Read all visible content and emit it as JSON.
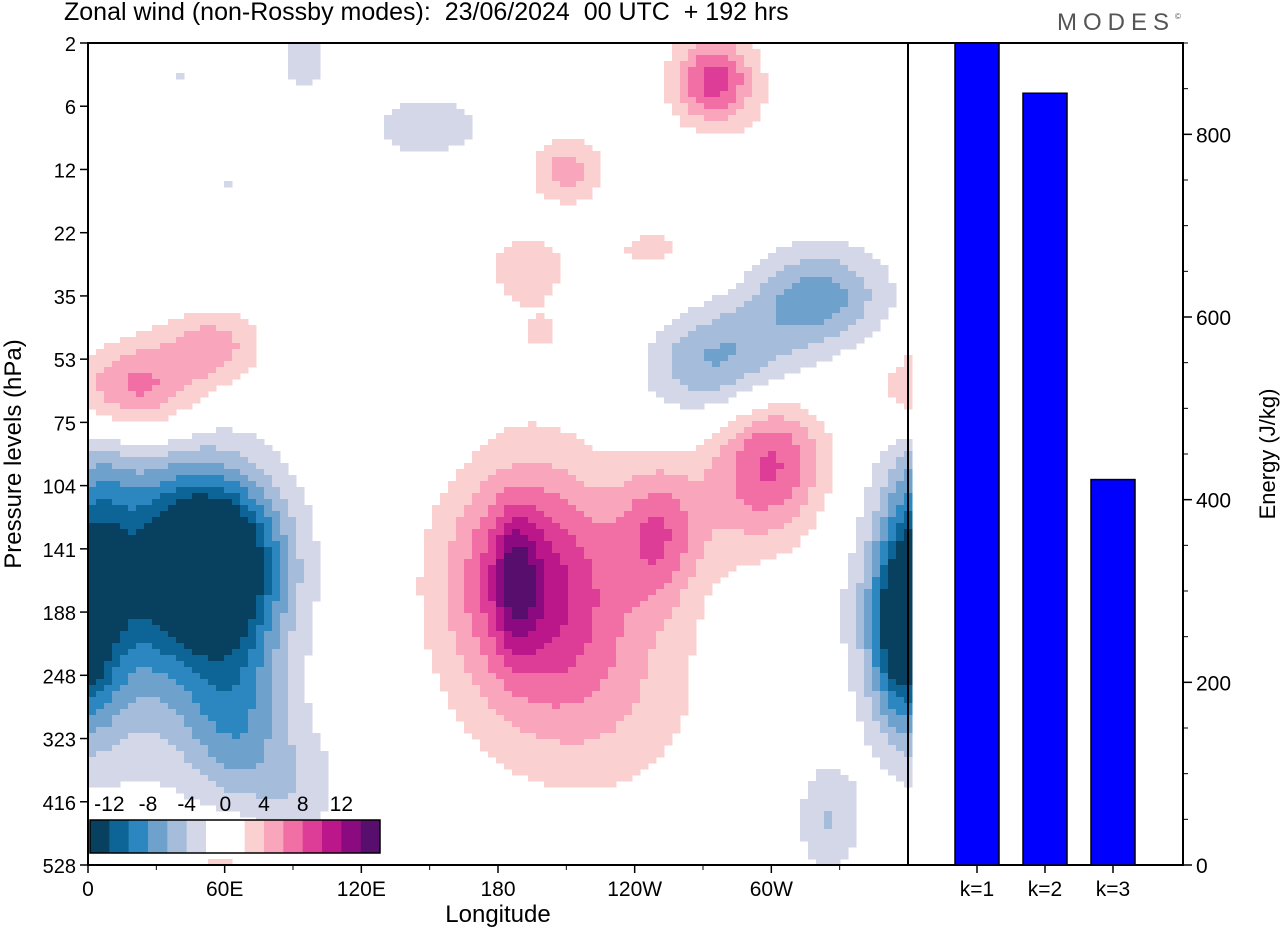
{
  "title": "Zonal wind (non-Rossby modes):  23/06/2024  00 UTC  + 192 hrs",
  "logo": "MODES",
  "logo_mark": "©",
  "colors": {
    "bar": "#0000ff",
    "scale": [
      "#08405f",
      "#0c6596",
      "#2c86bf",
      "#6ea1cc",
      "#a5bdda",
      "#d3d7e8",
      "#ffffff",
      "#ffffff",
      "#fbd0d0",
      "#f9a5bb",
      "#f16fa5",
      "#dd3d97",
      "#bc178a",
      "#8c0a7f",
      "#570e6c"
    ]
  },
  "chart_data": [
    {
      "type": "heatmap",
      "title": "Zonal wind (non-Rossby modes)",
      "xlabel": "Longitude",
      "ylabel": "Pressure levels (hPa)",
      "x_ticks": [
        "0",
        "60E",
        "120E",
        "180",
        "120W",
        "60W"
      ],
      "y_ticks": [
        "2",
        "6",
        "12",
        "22",
        "35",
        "53",
        "75",
        "104",
        "141",
        "188",
        "248",
        "323",
        "416",
        "528"
      ],
      "colorbar_labels": [
        "-12",
        "-8",
        "-4",
        "0",
        "4",
        "8",
        "12"
      ],
      "color_levels": [
        -14,
        -12,
        -10,
        -8,
        -6,
        -4,
        -2,
        0,
        2,
        4,
        6,
        8,
        10,
        12,
        14
      ],
      "blobs": [
        {
          "lon": 55,
          "lev": 8.2,
          "rx": 28,
          "ry": 1.2,
          "amp": -15
        },
        {
          "lon": 30,
          "lev": 8.6,
          "rx": 48,
          "ry": 2.4,
          "amp": -9
        },
        {
          "lon": 65,
          "lev": 10.6,
          "rx": 22,
          "ry": 1.6,
          "amp": -6
        },
        {
          "lon": 92,
          "lev": 11.8,
          "rx": 20,
          "ry": 1.0,
          "amp": -3
        },
        {
          "lon": 5,
          "lev": 8.5,
          "rx": 14,
          "ry": 2.2,
          "amp": -6
        },
        {
          "lon": 195,
          "lev": 8.4,
          "rx": 38,
          "ry": 1.8,
          "amp": 10
        },
        {
          "lon": 188,
          "lev": 8.5,
          "rx": 9,
          "ry": 1.0,
          "amp": 6
        },
        {
          "lon": 220,
          "lev": 10.2,
          "rx": 50,
          "ry": 1.8,
          "amp": 4
        },
        {
          "lon": 250,
          "lev": 7.8,
          "rx": 18,
          "ry": 1.1,
          "amp": 6
        },
        {
          "lon": 300,
          "lev": 6.5,
          "rx": 24,
          "ry": 1.0,
          "amp": 7
        },
        {
          "lon": 290,
          "lev": 7.4,
          "rx": 40,
          "ry": 1.1,
          "amp": 3
        },
        {
          "lon": 275,
          "lev": 5.0,
          "rx": 36,
          "ry": 0.9,
          "amp": -7
        },
        {
          "lon": 320,
          "lev": 4.0,
          "rx": 30,
          "ry": 0.8,
          "amp": -7
        },
        {
          "lon": 355,
          "lev": 9.3,
          "rx": 12,
          "ry": 1.4,
          "amp": -9
        },
        {
          "lon": 325,
          "lev": 12.3,
          "rx": 14,
          "ry": 0.9,
          "amp": -4
        },
        {
          "lon": 20,
          "lev": 5.5,
          "rx": 30,
          "ry": 0.8,
          "amp": 8
        },
        {
          "lon": 55,
          "lev": 4.8,
          "rx": 22,
          "ry": 0.6,
          "amp": 5
        },
        {
          "lon": 210,
          "lev": 4.6,
          "rx": 70,
          "ry": 1.0,
          "amp": 2
        },
        {
          "lon": 250,
          "lev": 3.2,
          "rx": 40,
          "ry": 0.7,
          "amp": 2
        },
        {
          "lon": 275,
          "lev": 0.6,
          "rx": 18,
          "ry": 0.7,
          "amp": 9
        },
        {
          "lon": 210,
          "lev": 2.0,
          "rx": 16,
          "ry": 0.5,
          "amp": 5
        },
        {
          "lon": 320,
          "lev": 1.5,
          "rx": 24,
          "ry": 0.6,
          "amp": 2
        },
        {
          "lon": 95,
          "lev": 0.2,
          "rx": 10,
          "ry": 0.5,
          "amp": -4
        },
        {
          "lon": 60,
          "lev": 2.2,
          "rx": 60,
          "ry": 0.7,
          "amp": -2
        },
        {
          "lon": 150,
          "lev": 1.3,
          "rx": 30,
          "ry": 0.6,
          "amp": -3
        },
        {
          "lon": 130,
          "lev": 5.6,
          "rx": 30,
          "ry": 1.0,
          "amp": -2
        },
        {
          "lon": 60,
          "lev": 13.0,
          "rx": 25,
          "ry": 0.9,
          "amp": 3
        },
        {
          "lon": 190,
          "lev": 3.4,
          "rx": 20,
          "ry": 0.6,
          "amp": 2
        },
        {
          "lon": 40,
          "lev": 0.5,
          "rx": 30,
          "ry": 0.6,
          "amp": -2
        }
      ]
    },
    {
      "type": "bar",
      "categories": [
        "k=1",
        "k=2",
        "k=3"
      ],
      "values": [
        900,
        845,
        422
      ],
      "ylabel": "Energy (J/kg)",
      "ylim": [
        0,
        900
      ],
      "y_ticks": [
        0,
        200,
        400,
        600,
        800
      ]
    }
  ]
}
